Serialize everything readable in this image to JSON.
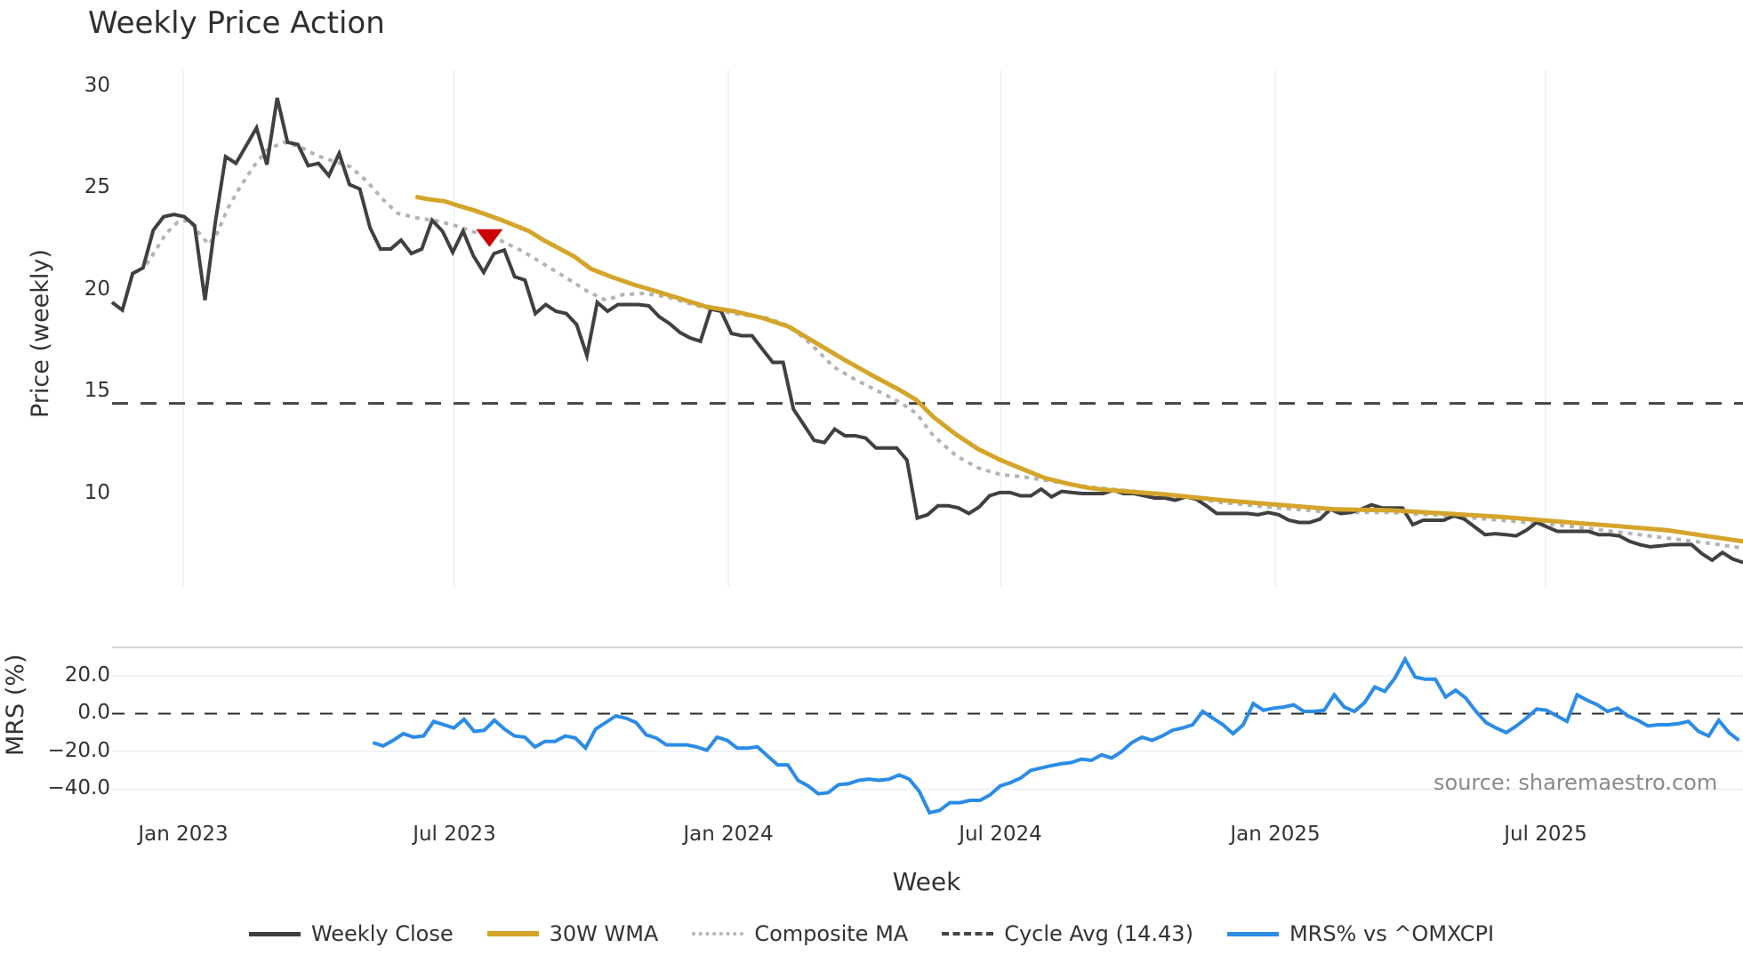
{
  "title": "Weekly Price Action",
  "price_panel": {
    "ylabel": "Price (weekly)",
    "yticks": [
      "30",
      "25",
      "20",
      "15",
      "10"
    ]
  },
  "mrs_panel": {
    "ylabel": "MRS (%)",
    "yticks": [
      "20.0",
      "0.0",
      "−20.0",
      "−40.0"
    ]
  },
  "xaxis": {
    "label": "Week",
    "ticks": [
      "Jan 2023",
      "Jul 2023",
      "Jan 2024",
      "Jul 2024",
      "Jan 2025",
      "Jul 2025"
    ]
  },
  "source": "source: sharemaestro.com",
  "legend": [
    {
      "label": "Weekly Close",
      "color": "#404040",
      "style": "solid"
    },
    {
      "label": "30W WMA",
      "color": "#d4a52a",
      "style": "solid"
    },
    {
      "label": "Composite MA",
      "color": "#b4b4b4",
      "style": "dotted"
    },
    {
      "label": "Cycle Avg (14.43)",
      "color": "#444444",
      "style": "dashed"
    },
    {
      "label": "MRS% vs ^OMXCPI",
      "color": "#2b8ce6",
      "style": "solid"
    }
  ],
  "colors": {
    "close": "#404040",
    "wma": "#d4a52a",
    "composite": "#b4b4b4",
    "cycle": "#444444",
    "mrs": "#2b8ce6",
    "marker": "#cc0000",
    "grid": "#eceff3"
  },
  "chart_data": [
    {
      "type": "line",
      "title": "Weekly Price Action",
      "xlabel": "Week",
      "ylabel": "Price (weekly)",
      "ylim": [
        5.6,
        31
      ],
      "x_tick_labels": [
        "Jan 2023",
        "Jul 2023",
        "Jan 2024",
        "Jul 2024",
        "Jan 2025",
        "Jul 2025"
      ],
      "x_tick_weeks": [
        6.84,
        32.9,
        59.3,
        85.5,
        111.9,
        137.9
      ],
      "x_unit": "weeks since first data point (~mid Nov 2022)",
      "grid": true,
      "legend_position": "bottom",
      "series": [
        {
          "name": "Weekly Close",
          "x_range": [
            0,
            156.9
          ],
          "values": [
            19.4,
            19.02,
            20.82,
            21.09,
            22.95,
            23.61,
            23.72,
            23.61,
            23.17,
            19.51,
            23.33,
            26.56,
            26.23,
            27.1,
            27.98,
            26.17,
            29.45,
            27.27,
            27.16,
            26.12,
            26.23,
            25.63,
            26.72,
            25.19,
            24.97,
            23.06,
            22.02,
            22.02,
            22.46,
            21.8,
            22.02,
            23.44,
            22.9,
            21.86,
            22.9,
            21.69,
            20.87,
            21.8,
            21.97,
            20.66,
            20.49,
            18.85,
            19.29,
            18.96,
            18.85,
            18.31,
            16.78,
            19.4,
            18.96,
            19.29,
            19.29,
            19.29,
            19.23,
            18.69,
            18.36,
            17.92,
            17.65,
            17.49,
            19.07,
            18.96,
            17.87,
            17.76,
            17.76,
            17.1,
            16.45,
            16.45,
            14.15,
            13.39,
            12.62,
            12.51,
            13.17,
            12.84,
            12.84,
            12.73,
            12.24,
            12.24,
            12.24,
            11.64,
            8.8,
            8.96,
            9.4,
            9.4,
            9.29,
            9.02,
            9.34,
            9.89,
            10.05,
            10.05,
            9.89,
            9.89,
            10.22,
            9.84,
            10.11,
            10.05,
            10.0,
            10.0,
            10.0,
            10.16,
            10.0,
            10.0,
            9.89,
            9.78,
            9.78,
            9.67,
            9.84,
            9.73,
            9.4,
            9.02,
            9.02,
            9.02,
            9.02,
            8.96,
            9.07,
            8.96,
            8.69,
            8.58,
            8.58,
            8.74,
            9.23,
            9.02,
            9.07,
            9.23,
            9.45,
            9.29,
            9.29,
            9.29,
            8.47,
            8.69,
            8.69,
            8.69,
            8.91,
            8.74,
            8.36,
            7.98,
            8.03,
            7.98,
            7.92,
            8.2,
            8.58,
            8.36,
            8.14,
            8.14,
            8.14,
            8.14,
            7.98,
            7.98,
            7.92,
            7.65,
            7.49,
            7.38,
            7.43,
            7.49,
            7.49,
            7.49,
            7.05,
            6.72,
            7.1,
            6.78,
            6.61
          ]
        },
        {
          "name": "30W WMA",
          "points": [
            [
              29.2,
              24.59
            ],
            [
              30.3,
              24.48
            ],
            [
              32,
              24.37
            ],
            [
              33.3,
              24.15
            ],
            [
              34.8,
              23.93
            ],
            [
              36.3,
              23.66
            ],
            [
              37.5,
              23.44
            ],
            [
              38.8,
              23.17
            ],
            [
              40.1,
              22.9
            ],
            [
              41.5,
              22.46
            ],
            [
              42.9,
              22.08
            ],
            [
              44.5,
              21.64
            ],
            [
              46.1,
              21.04
            ],
            [
              48,
              20.66
            ],
            [
              50.2,
              20.27
            ],
            [
              52.3,
              19.95
            ],
            [
              54.4,
              19.62
            ],
            [
              57.2,
              19.18
            ],
            [
              59.8,
              18.96
            ],
            [
              62.6,
              18.63
            ],
            [
              65.1,
              18.2
            ],
            [
              67.8,
              17.38
            ],
            [
              70.5,
              16.56
            ],
            [
              73.2,
              15.79
            ],
            [
              75.8,
              15.08
            ],
            [
              77.4,
              14.59
            ],
            [
              79,
              13.77
            ],
            [
              81.2,
              12.9
            ],
            [
              83.3,
              12.19
            ],
            [
              85.5,
              11.64
            ],
            [
              87.6,
              11.2
            ],
            [
              89.7,
              10.77
            ],
            [
              91.9,
              10.49
            ],
            [
              94,
              10.27
            ],
            [
              96.1,
              10.16
            ],
            [
              101.5,
              9.95
            ],
            [
              106.8,
              9.67
            ],
            [
              112.2,
              9.45
            ],
            [
              117.5,
              9.23
            ],
            [
              122.9,
              9.18
            ],
            [
              128.2,
              9.02
            ],
            [
              133.6,
              8.85
            ],
            [
              138.9,
              8.63
            ],
            [
              144.3,
              8.42
            ],
            [
              149.6,
              8.2
            ],
            [
              153.9,
              7.87
            ],
            [
              156.9,
              7.65
            ]
          ]
        },
        {
          "name": "Composite MA",
          "points": [
            [
              3.3,
              21.26
            ],
            [
              4.2,
              21.97
            ],
            [
              5.2,
              22.79
            ],
            [
              6.3,
              23.33
            ],
            [
              7.4,
              23.44
            ],
            [
              8.4,
              22.79
            ],
            [
              9.3,
              22.24
            ],
            [
              10.1,
              22.79
            ],
            [
              11.1,
              23.99
            ],
            [
              12.2,
              24.97
            ],
            [
              13.6,
              26.07
            ],
            [
              14.9,
              26.89
            ],
            [
              16.5,
              27.27
            ],
            [
              18.1,
              27.05
            ],
            [
              19.7,
              26.61
            ],
            [
              21.3,
              26.34
            ],
            [
              22.9,
              26.07
            ],
            [
              24.5,
              25.36
            ],
            [
              26.1,
              24.43
            ],
            [
              27.5,
              23.77
            ],
            [
              29.3,
              23.55
            ],
            [
              31.4,
              23.39
            ],
            [
              33,
              23.17
            ],
            [
              35.2,
              22.79
            ],
            [
              37.3,
              22.46
            ],
            [
              39.5,
              21.91
            ],
            [
              41.6,
              21.26
            ],
            [
              43.7,
              20.6
            ],
            [
              45.9,
              19.89
            ],
            [
              47.5,
              19.51
            ],
            [
              49.1,
              19.78
            ],
            [
              51.2,
              19.84
            ],
            [
              53.4,
              19.67
            ],
            [
              55.5,
              19.34
            ],
            [
              57.6,
              19.07
            ],
            [
              59.8,
              18.85
            ],
            [
              63,
              18.63
            ],
            [
              65.1,
              18.25
            ],
            [
              67.3,
              17.32
            ],
            [
              69.4,
              16.23
            ],
            [
              71.6,
              15.57
            ],
            [
              73.7,
              15.03
            ],
            [
              75.8,
              14.48
            ],
            [
              77.4,
              13.93
            ],
            [
              79,
              12.84
            ],
            [
              81.2,
              11.86
            ],
            [
              83.3,
              11.26
            ],
            [
              85.5,
              10.93
            ],
            [
              87.6,
              10.82
            ],
            [
              89.7,
              10.66
            ],
            [
              91.9,
              10.49
            ],
            [
              94,
              10.33
            ],
            [
              96.1,
              10.22
            ],
            [
              101.5,
              9.95
            ],
            [
              106.8,
              9.56
            ],
            [
              112.2,
              9.29
            ],
            [
              117.5,
              9.07
            ],
            [
              122.9,
              9.07
            ],
            [
              128.2,
              8.91
            ],
            [
              133.6,
              8.69
            ],
            [
              138.9,
              8.47
            ],
            [
              144.3,
              8.14
            ],
            [
              149.6,
              7.81
            ],
            [
              153.9,
              7.54
            ],
            [
              156.9,
              7.32
            ]
          ]
        },
        {
          "name": "Cycle Avg (14.43)",
          "constant": 14.43
        }
      ],
      "annotations": [
        {
          "type": "marker",
          "shape": "triangle-down",
          "color": "#cc0000",
          "week": 36.3,
          "value": 22.6
        }
      ]
    },
    {
      "type": "line",
      "ylabel": "MRS (%)",
      "ylim": [
        -56,
        34
      ],
      "yticks": [
        20,
        0,
        -20,
        -40
      ],
      "reference_line": 0,
      "series": [
        {
          "name": "MRS% vs ^OMXCPI",
          "x_range": [
            25.1,
            156.5
          ],
          "values": [
            -15.3,
            -17.1,
            -14.1,
            -10.6,
            -12.4,
            -11.8,
            -4.1,
            -5.9,
            -7.6,
            -2.9,
            -9.4,
            -8.8,
            -3.5,
            -8.2,
            -11.8,
            -12.4,
            -17.6,
            -14.7,
            -14.7,
            -11.8,
            -12.9,
            -18.2,
            -8.2,
            -4.7,
            -1.2,
            -2.4,
            -4.7,
            -11.2,
            -12.9,
            -16.5,
            -16.5,
            -16.5,
            -17.6,
            -19.4,
            -12.4,
            -14.1,
            -18.2,
            -18.2,
            -17.6,
            -22.4,
            -27.1,
            -27.1,
            -35.3,
            -38.2,
            -42.4,
            -41.8,
            -37.6,
            -37.1,
            -35.3,
            -34.7,
            -35.3,
            -34.7,
            -32.4,
            -34.7,
            -41.2,
            -52.4,
            -51.2,
            -47.1,
            -47.1,
            -45.9,
            -45.9,
            -42.9,
            -38.2,
            -36.5,
            -34.1,
            -30.0,
            -28.8,
            -27.6,
            -26.5,
            -25.9,
            -24.1,
            -24.7,
            -21.8,
            -23.5,
            -20.0,
            -15.3,
            -12.4,
            -14.1,
            -11.8,
            -8.8,
            -7.6,
            -5.9,
            1.2,
            -2.4,
            -5.9,
            -10.6,
            -5.9,
            5.3,
            1.8,
            2.9,
            3.5,
            4.7,
            1.2,
            1.2,
            1.8,
            10.0,
            3.5,
            1.2,
            5.9,
            14.1,
            11.8,
            18.8,
            28.8,
            19.4,
            18.2,
            18.2,
            8.8,
            12.4,
            8.2,
            1.2,
            -4.7,
            -7.6,
            -10.0,
            -6.5,
            -2.4,
            2.4,
            1.8,
            -1.2,
            -4.1,
            10.0,
            7.1,
            4.7,
            1.2,
            2.9,
            -1.2,
            -3.5,
            -6.5,
            -5.9,
            -5.9,
            -5.3,
            -4.1,
            -9.4,
            -11.8,
            -3.5,
            -10.0,
            -14.1
          ]
        }
      ]
    }
  ]
}
